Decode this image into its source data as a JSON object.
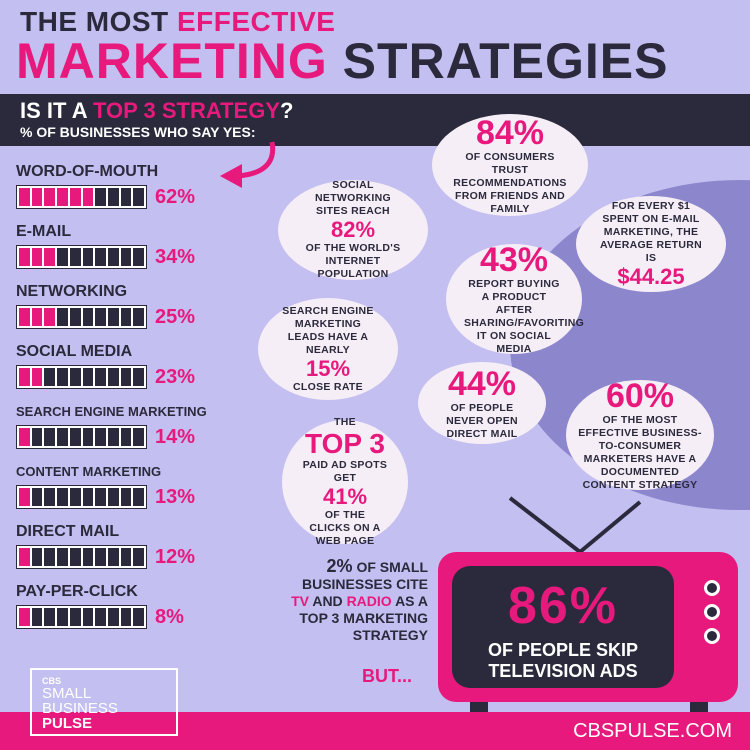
{
  "title": {
    "line1_the": "THE MOST",
    "line1_hl": "EFFECTIVE",
    "line2_a": "MARKETING",
    "line2_b": "STRATEGIES"
  },
  "question": {
    "pre": "IS IT A",
    "hl": "TOP 3 STRATEGY",
    "post": "?",
    "sub_pre": "% OF BUSINESSES WHO SAY",
    "sub_yes": "YES:"
  },
  "strategies": [
    {
      "label": "WORD-OF-MOUTH",
      "value": "62%",
      "fraction": 0.62,
      "small": false
    },
    {
      "label": "E-MAIL",
      "value": "34%",
      "fraction": 0.34,
      "small": false
    },
    {
      "label": "NETWORKING",
      "value": "25%",
      "fraction": 0.25,
      "small": false
    },
    {
      "label": "SOCIAL MEDIA",
      "value": "23%",
      "fraction": 0.23,
      "small": false
    },
    {
      "label": "SEARCH ENGINE MARKETING",
      "value": "14%",
      "fraction": 0.14,
      "small": true
    },
    {
      "label": "CONTENT MARKETING",
      "value": "13%",
      "fraction": 0.13,
      "small": true
    },
    {
      "label": "DIRECT MAIL",
      "value": "12%",
      "fraction": 0.12,
      "small": false
    },
    {
      "label": "PAY-PER-CLICK",
      "value": "8%",
      "fraction": 0.08,
      "small": false
    }
  ],
  "facts": {
    "trust": {
      "big": "84%",
      "text": "OF CONSUMERS TRUST RECOMMENDATIONS FROM FRIENDS AND FAMILY"
    },
    "social": {
      "pre": "SOCIAL NETWORKING SITES REACH",
      "big": "82%",
      "post": "OF THE WORLD'S INTERNET POPULATION"
    },
    "email_return": {
      "pre": "FOR EVERY $1 SPENT ON E-MAIL MARKETING, THE AVERAGE RETURN IS",
      "big": "$44.25"
    },
    "buying": {
      "big": "43%",
      "text": "REPORT BUYING A PRODUCT AFTER SHARING/FAVORITING IT ON SOCIAL MEDIA"
    },
    "search": {
      "pre": "SEARCH ENGINE MARKETING LEADS HAVE A NEARLY",
      "big": "15%",
      "post": "CLOSE RATE"
    },
    "direct_mail": {
      "big": "44%",
      "text": "OF PEOPLE NEVER OPEN DIRECT MAIL"
    },
    "content": {
      "big": "60%",
      "text": "OF THE MOST EFFECTIVE BUSINESS-TO-CONSUMER MARKETERS HAVE A DOCUMENTED CONTENT STRATEGY"
    },
    "paid_ads": {
      "pre": "THE",
      "top": "TOP 3",
      "mid": "PAID AD SPOTS GET",
      "big": "41%",
      "post": "OF THE CLICKS ON A WEB PAGE"
    }
  },
  "tv_note": {
    "k": "2%",
    "line1": "OF SMALL BUSINESSES CITE",
    "tv": "TV",
    "and": "AND",
    "radio": "RADIO",
    "line2": "AS A TOP 3 MARKETING STRATEGY",
    "but": "BUT..."
  },
  "tv": {
    "big": "86%",
    "text": "OF PEOPLE SKIP TELEVISION ADS"
  },
  "logo": {
    "cbs": "CBS",
    "l1": "SMALL",
    "l2": "BUSINESS",
    "l3": "PULSE"
  },
  "site": "CBSPULSE.COM",
  "colors": {
    "pink": "#e8197d",
    "navy": "#2b2a3c",
    "lavender": "#c3bff0",
    "purple": "#8c86cc"
  }
}
